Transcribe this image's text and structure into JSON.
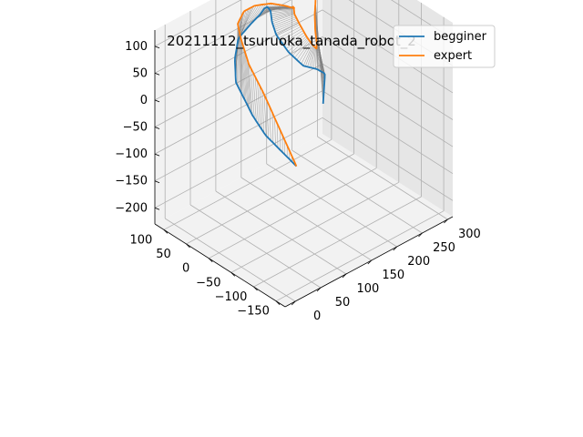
{
  "chart_data": {
    "type": "line",
    "title": "20211112_tsuruoka_tanada_robot_2",
    "projection": "3d",
    "grid": true,
    "legend_placement": "top-right",
    "legend": [
      {
        "name": "begginer",
        "color": "#1f77b4"
      },
      {
        "name": "expert",
        "color": "#ff7f0e"
      }
    ],
    "connector_color": "#808080",
    "axes": {
      "x": {
        "ticks": [
          -150,
          -100,
          -50,
          0,
          50,
          100
        ],
        "tick_labels": [
          "−150",
          "−100",
          "−50",
          "0",
          "50",
          "100"
        ],
        "lim": [
          -170,
          120
        ]
      },
      "y": {
        "ticks": [
          0,
          50,
          100,
          150,
          200,
          250,
          300
        ],
        "tick_labels": [
          "0",
          "50",
          "100",
          "150",
          "200",
          "250",
          "300"
        ],
        "lim": [
          -20,
          310
        ]
      },
      "z": {
        "ticks": [
          -200,
          -150,
          -100,
          -50,
          0,
          50,
          100
        ],
        "tick_labels": [
          "−200",
          "−150",
          "−100",
          "−50",
          "0",
          "50",
          "100"
        ],
        "lim": [
          -230,
          130
        ]
      }
    },
    "series": [
      {
        "name": "begginer",
        "color": "#1f77b4",
        "x": [
          -150,
          -110,
          -70,
          -30,
          0,
          30,
          55,
          70,
          75,
          78,
          80,
          90,
          100,
          108,
          110,
          105,
          95,
          85,
          80,
          92,
          100,
          105
        ],
        "y": [
          20,
          25,
          30,
          40,
          50,
          60,
          80,
          100,
          130,
          150,
          160,
          175,
          190,
          200,
          210,
          230,
          250,
          268,
          278,
          290,
          296,
          298
        ],
        "z": [
          0,
          5,
          10,
          20,
          30,
          40,
          60,
          80,
          90,
          95,
          100,
          90,
          70,
          40,
          10,
          -30,
          -60,
          -70,
          -80,
          -95,
          -120,
          -160
        ]
      },
      {
        "name": "expert",
        "color": "#ff7f0e",
        "x": [
          -150,
          -110,
          -60,
          -10,
          30,
          60,
          80,
          90,
          88,
          80,
          75,
          95,
          110,
          120,
          117,
          105,
          95,
          88,
          90,
          100,
          110,
          115
        ],
        "y": [
          20,
          25,
          35,
          50,
          70,
          90,
          120,
          150,
          180,
          200,
          215,
          230,
          245,
          255,
          262,
          266,
          268,
          270,
          272,
          278,
          286,
          292
        ],
        "z": [
          0,
          40,
          80,
          100,
          115,
          118,
          115,
          105,
          95,
          85,
          75,
          60,
          40,
          20,
          0,
          -20,
          -30,
          -35,
          -25,
          -10,
          10,
          30
        ]
      }
    ]
  }
}
